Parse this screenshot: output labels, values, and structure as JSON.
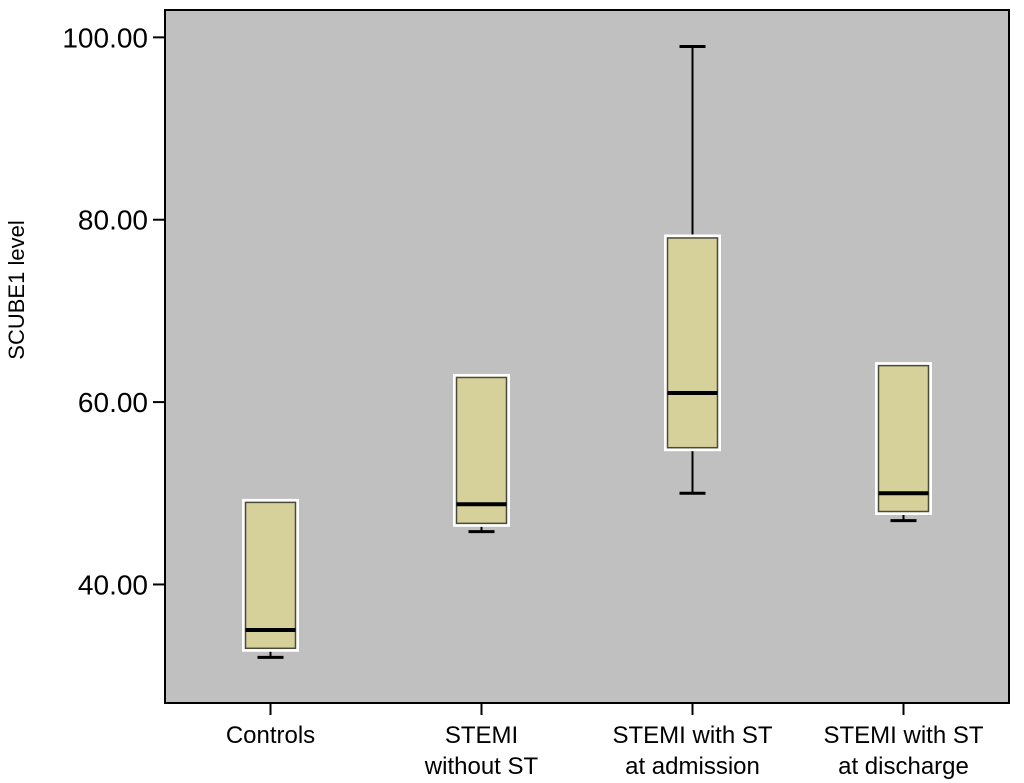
{
  "chart_data": {
    "type": "box",
    "title": "",
    "xlabel": "",
    "ylabel": "SCUBE1 level",
    "ylim": [
      27,
      103
    ],
    "y_ticks": [
      {
        "value": 40,
        "label": "40.00"
      },
      {
        "value": 60,
        "label": "60.00"
      },
      {
        "value": 80,
        "label": "80.00"
      },
      {
        "value": 100,
        "label": "100.00"
      }
    ],
    "grid": false,
    "legend": "none",
    "categories": [
      {
        "lines": [
          "Controls"
        ]
      },
      {
        "lines": [
          "STEMI",
          "without ST"
        ]
      },
      {
        "lines": [
          "STEMI with ST",
          "at admission"
        ]
      },
      {
        "lines": [
          "STEMI with ST",
          "at discharge"
        ]
      }
    ],
    "boxes": [
      {
        "min": 32,
        "q1": 33,
        "median": 35,
        "q3": 49,
        "max": 49
      },
      {
        "min": 45.8,
        "q1": 46.7,
        "median": 48.8,
        "q3": 62.7,
        "max": 62.7
      },
      {
        "min": 50,
        "q1": 55,
        "median": 61,
        "q3": 78,
        "max": 99
      },
      {
        "min": 47,
        "q1": 48,
        "median": 50,
        "q3": 64,
        "max": 64
      }
    ],
    "colors": {
      "plot_background": "#c0c0c0",
      "box_fill": "#d6d09a",
      "box_outline": "#ffffff",
      "lines": "#000000"
    }
  }
}
